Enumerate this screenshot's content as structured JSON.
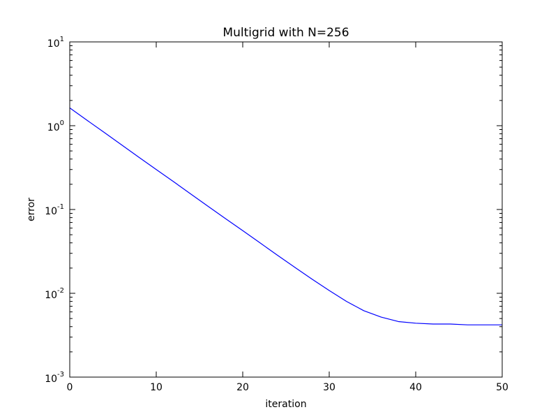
{
  "chart_data": {
    "type": "line",
    "title": "Multigrid with N=256",
    "xlabel": "iteration",
    "ylabel": "error",
    "xlim": [
      0,
      50
    ],
    "ylim": [
      0.001,
      10
    ],
    "yscale": "log",
    "grid": false,
    "x_ticks": [
      {
        "value": 0,
        "label": "0"
      },
      {
        "value": 10,
        "label": "10"
      },
      {
        "value": 20,
        "label": "20"
      },
      {
        "value": 30,
        "label": "30"
      },
      {
        "value": 40,
        "label": "40"
      },
      {
        "value": 50,
        "label": "50"
      }
    ],
    "y_ticks": [
      {
        "value": 0.001,
        "base": "10",
        "exp": "-3"
      },
      {
        "value": 0.01,
        "base": "10",
        "exp": "-2"
      },
      {
        "value": 0.1,
        "base": "10",
        "exp": "-1"
      },
      {
        "value": 1,
        "base": "10",
        "exp": "0"
      },
      {
        "value": 10,
        "base": "10",
        "exp": "1"
      }
    ],
    "series": [
      {
        "color": "#0000ff",
        "x": [
          0,
          2,
          4,
          6,
          8,
          10,
          12,
          14,
          16,
          18,
          20,
          22,
          24,
          26,
          28,
          30,
          32,
          34,
          36,
          38,
          40,
          42,
          44,
          46,
          48,
          50
        ],
        "y": [
          1.63,
          1.16,
          0.83,
          0.59,
          0.42,
          0.3,
          0.215,
          0.153,
          0.109,
          0.078,
          0.056,
          0.04,
          0.0285,
          0.0205,
          0.0148,
          0.0108,
          0.008,
          0.0062,
          0.0052,
          0.0046,
          0.0044,
          0.0043,
          0.0043,
          0.0042,
          0.0042,
          0.0042
        ]
      }
    ]
  }
}
